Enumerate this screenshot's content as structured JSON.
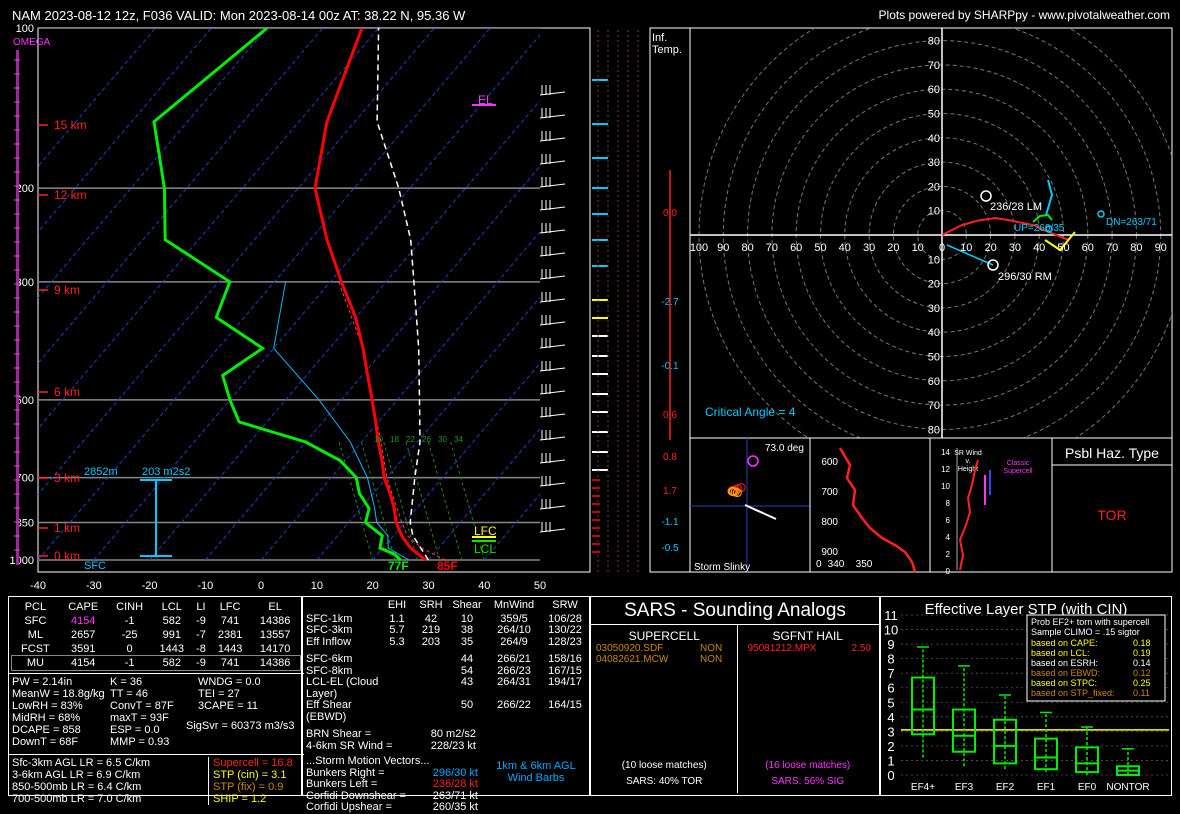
{
  "header": {
    "title": "NAM 2023-08-12 12z, F036  VALID: Mon 2023-08-14 00z  AT: 38.22 N, 95.36 W",
    "credit": "Plots powered by SHARPpy - www.pivotalweather.com"
  },
  "skewt": {
    "omega_label": "OMEGA",
    "pressure_ticks": [
      "100",
      "200",
      "300",
      "500",
      "700",
      "850",
      "1000"
    ],
    "temp_ticks": [
      "-40",
      "-30",
      "-20",
      "-10",
      "0",
      "10",
      "20",
      "30",
      "40",
      "50"
    ],
    "height_labels": [
      "15 km",
      "12 km",
      "9 km",
      "6 km",
      "3 km",
      "1 km",
      "0 km"
    ],
    "sfc_label": "SFC",
    "el_label": "EL",
    "lfc_label": "LFC",
    "lcl_label": "LCL",
    "sfc_temp": "85F",
    "sfc_dew": "77F",
    "eff_inflow_top": "2852m",
    "eff_inflow_srh": "203 m2s2",
    "mixr_labels": [
      "10",
      "18",
      "22",
      "26",
      "30",
      "34"
    ],
    "temperature_profile": [
      [
        1000,
        29.5
      ],
      [
        950,
        25.0
      ],
      [
        900,
        21.5
      ],
      [
        850,
        18.5
      ],
      [
        800,
        16.0
      ],
      [
        750,
        13.0
      ],
      [
        700,
        9.5
      ],
      [
        650,
        6.5
      ],
      [
        600,
        3.0
      ],
      [
        550,
        -0.5
      ],
      [
        500,
        -4.5
      ],
      [
        450,
        -9.0
      ],
      [
        400,
        -14.0
      ],
      [
        350,
        -20.0
      ],
      [
        300,
        -28.0
      ],
      [
        250,
        -37.0
      ],
      [
        200,
        -47.0
      ],
      [
        150,
        -55.0
      ],
      [
        100,
        -63.0
      ]
    ],
    "dewpoint_profile": [
      [
        1000,
        25.0
      ],
      [
        975,
        23.0
      ],
      [
        950,
        19.5
      ],
      [
        900,
        18.0
      ],
      [
        850,
        13.0
      ],
      [
        800,
        11.5
      ],
      [
        750,
        7.5
      ],
      [
        700,
        4.5
      ],
      [
        650,
        -1.0
      ],
      [
        600,
        -10.0
      ],
      [
        550,
        -25.0
      ],
      [
        500,
        -30.0
      ],
      [
        450,
        -35.0
      ],
      [
        400,
        -32.0
      ],
      [
        350,
        -45.0
      ],
      [
        300,
        -48.0
      ],
      [
        250,
        -66.0
      ],
      [
        200,
        -74.0
      ],
      [
        150,
        -86.0
      ],
      [
        100,
        -80.0
      ]
    ],
    "virtual_temp_profile": [
      [
        1000,
        33.0
      ],
      [
        950,
        27.0
      ],
      [
        900,
        22.5
      ],
      [
        850,
        19.5
      ],
      [
        800,
        16.5
      ],
      [
        700,
        10.0
      ],
      [
        600,
        3.5
      ],
      [
        500,
        -4.5
      ],
      [
        400,
        -14.0
      ],
      [
        300,
        -28.5
      ]
    ],
    "wetbulb_profile": [
      [
        1000,
        26.5
      ],
      [
        950,
        21.0
      ],
      [
        900,
        19.0
      ],
      [
        850,
        15.0
      ],
      [
        800,
        12.5
      ],
      [
        700,
        6.5
      ],
      [
        600,
        -2.0
      ],
      [
        500,
        -14.0
      ],
      [
        400,
        -30.0
      ],
      [
        300,
        -38.0
      ]
    ],
    "parcel_profile": [
      [
        1000,
        30.0
      ],
      [
        900,
        23.5
      ],
      [
        850,
        21.0
      ],
      [
        700,
        15.0
      ],
      [
        600,
        10.5
      ],
      [
        500,
        4.0
      ],
      [
        400,
        -4.0
      ],
      [
        300,
        -15.0
      ],
      [
        250,
        -22.0
      ],
      [
        200,
        -32.0
      ],
      [
        150,
        -46.0
      ],
      [
        100,
        -60.0
      ]
    ]
  },
  "inferred_temp": {
    "title": "Inf.\nTemp.",
    "labels": [
      "0.0",
      "-2.7",
      "-0.1",
      "0.6",
      "0.8",
      "1.7",
      "-1.1",
      "-0.5"
    ]
  },
  "hodograph": {
    "rings": [
      "10",
      "20",
      "30",
      "40",
      "50",
      "60",
      "70",
      "80"
    ],
    "x_labels": [
      "0",
      "10",
      "20",
      "30",
      "40",
      "50",
      "60",
      "70",
      "80",
      "90",
      "100"
    ],
    "lm_label": "236/28 LM",
    "rm_label": "296/30 RM",
    "dn_label": "DN=263/71",
    "up_label": "UP=260/35",
    "critical_angle": "Critical Angle = 4",
    "points": [
      [
        0,
        0
      ],
      [
        8,
        4
      ],
      [
        15,
        6
      ],
      [
        22,
        7
      ],
      [
        28,
        6
      ],
      [
        33,
        5
      ],
      [
        38,
        4
      ],
      [
        42,
        2
      ],
      [
        47,
        0
      ],
      [
        52,
        -2
      ]
    ]
  },
  "slinky": {
    "title": "Storm Slinky",
    "angle": "73.0 deg"
  },
  "theta_e": {
    "p_labels": [
      "600",
      "700",
      "800",
      "900"
    ],
    "x_labels": [
      "340",
      "350"
    ]
  },
  "srwind": {
    "title": "SR Wind\nv.\nHeight",
    "classic": "Classic\nSupercell",
    "h_labels": [
      "14",
      "12",
      "10",
      "8",
      "6",
      "4",
      "2",
      "0"
    ]
  },
  "possible_hazard": {
    "title": "Psbl Haz. Type",
    "type": "TOR"
  },
  "thermo_table": {
    "headers": [
      "PCL",
      "CAPE",
      "CINH",
      "LCL",
      "LI",
      "LFC",
      "EL"
    ],
    "rows": [
      [
        "SFC",
        "4154",
        "-1",
        "582",
        "-9",
        "741",
        "14386"
      ],
      [
        "ML",
        "2657",
        "-25",
        "991",
        "-7",
        "2381",
        "13557"
      ],
      [
        "FCST",
        "3591",
        "0",
        "1443",
        "-8",
        "1443",
        "14170"
      ],
      [
        "MU",
        "4154",
        "-1",
        "582",
        "-9",
        "741",
        "14386"
      ]
    ],
    "indices_left": [
      "PW = 2.14in",
      "MeanW = 18.8g/kg",
      "LowRH = 83%",
      "MidRH = 68%",
      "DCAPE = 858",
      "DownT = 68F"
    ],
    "indices_mid": [
      "K = 36",
      "TT = 46",
      "ConvT = 87F",
      "maxT = 93F",
      "ESP = 0.0",
      "MMP = 0.93"
    ],
    "indices_right": [
      "WNDG = 0.0",
      "TEI = 27",
      "3CAPE = 11",
      "",
      "",
      ""
    ],
    "sigsvr": "SigSvr = 60373 m3/s3",
    "lapse_rates": [
      "Sfc-3km AGL LR = 6.5 C/km",
      "3-6km AGL LR = 6.9 C/km",
      "850-500mb LR = 6.4 C/km",
      "700-500mb LR = 7.0 C/km"
    ],
    "composites": [
      "Supercell = 16.8",
      "STP (cin) = 3.1",
      "STP (fix) = 0.9",
      "SHIP = 1.2"
    ]
  },
  "kinematics": {
    "headers": [
      "",
      "EHI",
      "SRH",
      "Shear",
      "MnWind",
      "SRW"
    ],
    "rows": [
      [
        "SFC-1km",
        "1.1",
        "42",
        "10",
        "359/5",
        "106/28"
      ],
      [
        "SFC-3km",
        "5.7",
        "219",
        "38",
        "264/10",
        "130/22"
      ],
      [
        "Eff Inflow",
        "5.3",
        "203",
        "35",
        "264/9",
        "128/23"
      ]
    ],
    "rows2": [
      [
        "SFC-6km",
        "",
        "",
        "44",
        "266/21",
        "158/16"
      ],
      [
        "SFC-8km",
        "",
        "",
        "54",
        "266/23",
        "167/15"
      ],
      [
        "LCL-EL (Cloud Layer)",
        "",
        "",
        "43",
        "264/31",
        "194/17"
      ],
      [
        "Eff Shear (EBWD)",
        "",
        "",
        "50",
        "266/22",
        "164/15"
      ]
    ],
    "brn_shear_label": "BRN Shear =",
    "brn_shear": "80 m2/s2",
    "sr_wind_label": "4-6km SR Wind =",
    "sr_wind": "228/23 kt",
    "storm_motion_title": "...Storm Motion Vectors...",
    "motions": [
      [
        "Bunkers Right =",
        "296/30 kt"
      ],
      [
        "Bunkers Left =",
        "236/28 kt"
      ],
      [
        "Corfidi Downshear =",
        "263/71 kt"
      ],
      [
        "Corfidi Upshear =",
        "260/35 kt"
      ]
    ],
    "barb_note": "1km & 6km AGL\nWind Barbs"
  },
  "sars": {
    "title": "SARS - Sounding Analogs",
    "supercell_title": "SUPERCELL",
    "hail_title": "SGFNT HAIL",
    "supercell_matches": [
      [
        "03050920.SDF",
        "NON"
      ],
      [
        "04082621.MCW",
        "NON"
      ]
    ],
    "hail_matches": [
      [
        "95081212.MPX",
        "2.50"
      ]
    ],
    "supercell_loose": "(10 loose matches)",
    "supercell_pct": "SARS: 40% TOR",
    "hail_loose": "(16 loose matches)",
    "hail_pct": "SARS: 56% SIG"
  },
  "stp": {
    "title": "Effective Layer STP (with CIN)",
    "y_labels": [
      "0",
      "1",
      "2",
      "3",
      "4",
      "5",
      "6",
      "7",
      "8",
      "9",
      "10",
      "11"
    ],
    "categories": [
      "EF4+",
      "EF3",
      "EF2",
      "EF1",
      "EF0",
      "NONTOR"
    ],
    "legend_title": "Prob EF2+ torn with supercell",
    "legend_sub": "Sample CLIMO = .15 sigtor",
    "legend_rows": [
      [
        "based on CAPE:",
        "0.18"
      ],
      [
        "based on LCL:",
        "0.19"
      ],
      [
        "based on ESRH:",
        "0.14"
      ],
      [
        "based on EBWD:",
        "0.12"
      ],
      [
        "based on STPC:",
        "0.25"
      ],
      [
        "based on STP_fixed:",
        "0.11"
      ]
    ],
    "boxes": [
      [
        1.2,
        2.8,
        4.5,
        6.7,
        8.8
      ],
      [
        0.6,
        1.6,
        2.7,
        4.5,
        7.5
      ],
      [
        0.4,
        0.8,
        2.0,
        3.8,
        5.5
      ],
      [
        0.2,
        0.4,
        1.2,
        2.5,
        4.3
      ],
      [
        0.0,
        0.2,
        0.8,
        1.9,
        3.3
      ],
      [
        0.0,
        0.0,
        0.3,
        0.6,
        1.8
      ]
    ],
    "current_stp": 3.1
  },
  "colors": {
    "temp": "#ff0000",
    "dew": "#00ee00",
    "parcel": "#ffffff",
    "cyan": "#00ccff",
    "yellow": "#ffff00",
    "magenta": "#ff33ff"
  }
}
